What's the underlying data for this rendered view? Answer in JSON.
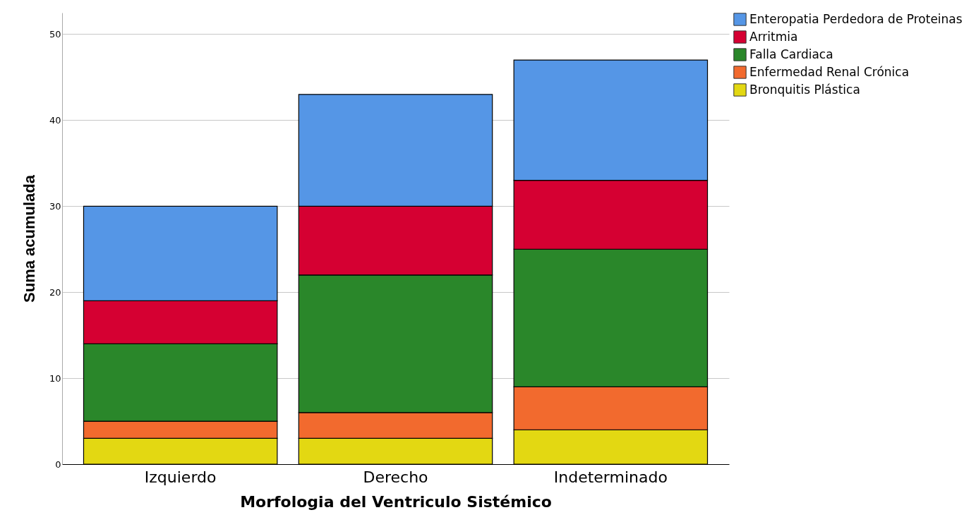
{
  "chart_data": {
    "type": "bar",
    "stacked": true,
    "xlabel": "Morfologia del Ventriculo Sistémico",
    "ylabel": "Suma acumulada",
    "categories": [
      "Izquierdo",
      "Derecho",
      "Indeterminado"
    ],
    "series": [
      {
        "name": "Bronquitis Plástica",
        "color": "#e3d812",
        "values": [
          3,
          3,
          4
        ]
      },
      {
        "name": "Enfermedad Renal Crónica",
        "color": "#f26a2e",
        "values": [
          2,
          3,
          5
        ]
      },
      {
        "name": "Falla Cardiaca",
        "color": "#2a872a",
        "values": [
          9,
          16,
          16
        ]
      },
      {
        "name": "Arritmia",
        "color": "#d50032",
        "values": [
          5,
          8,
          8
        ]
      },
      {
        "name": "Enteropatia Perdedora de Proteinas",
        "color": "#5596e6",
        "values": [
          11,
          13,
          14
        ]
      }
    ],
    "ylim": [
      0,
      52.5
    ],
    "yticks": [
      0,
      10,
      20,
      30,
      40,
      50
    ],
    "grid": "y",
    "legend": "top right"
  }
}
